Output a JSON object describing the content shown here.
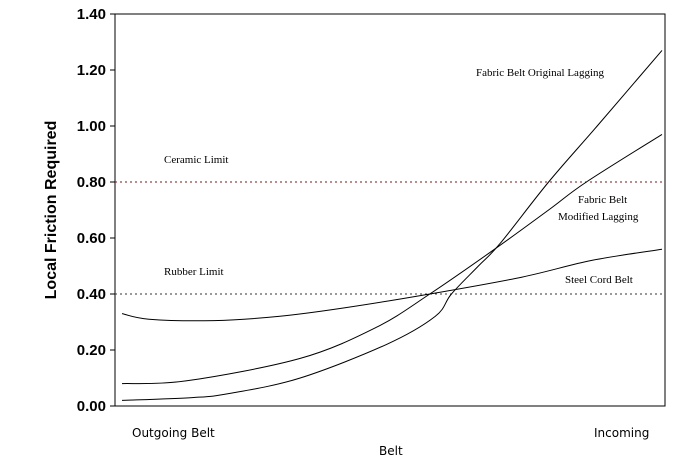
{
  "chart_data": {
    "type": "line",
    "title": "",
    "xlabel": "Belt",
    "ylabel": "Local Friction Required",
    "x_tick_labels": [
      "Outgoing Belt",
      "Incoming"
    ],
    "y_ticks": [
      "0.00",
      "0.20",
      "0.40",
      "0.60",
      "0.80",
      "1.00",
      "1.20",
      "1.40"
    ],
    "ylim": [
      0,
      1.4
    ],
    "xlim": [
      0,
      1
    ],
    "grid": false,
    "legend": "none (inline labels)",
    "series": [
      {
        "name": "Fabric Belt Original Lagging",
        "x": [
          0,
          0.13,
          0.2,
          0.33,
          0.49,
          0.58,
          0.61,
          0.66,
          0.7,
          0.79,
          0.88,
          1.0
        ],
        "y": [
          0.02,
          0.03,
          0.045,
          0.1,
          0.22,
          0.32,
          0.4,
          0.5,
          0.58,
          0.8,
          1.0,
          1.27
        ]
      },
      {
        "name": "Fabric Belt Modified Lagging",
        "x": [
          0,
          0.12,
          0.33,
          0.47,
          0.57,
          0.69,
          0.79,
          0.86,
          1.0
        ],
        "y": [
          0.08,
          0.09,
          0.17,
          0.28,
          0.4,
          0.56,
          0.7,
          0.8,
          0.97
        ]
      },
      {
        "name": "Steel Cord Belt",
        "x": [
          0,
          0.05,
          0.17,
          0.29,
          0.41,
          0.57,
          0.74,
          0.87,
          1.0
        ],
        "y": [
          0.33,
          0.31,
          0.305,
          0.32,
          0.35,
          0.4,
          0.46,
          0.52,
          0.56
        ]
      }
    ],
    "reference_lines": [
      {
        "name": "Ceramic Limit",
        "y": 0.8,
        "style": "dotted",
        "color": "#7a1a1a"
      },
      {
        "name": "Rubber Limit",
        "y": 0.4,
        "style": "dotted",
        "color": "#333333"
      }
    ],
    "annotations": {
      "original": "Fabric Belt Original Lagging",
      "modified_1": "Fabric Belt",
      "modified_2": "Modified Lagging",
      "steel": "Steel Cord Belt",
      "ceramic": "Ceramic Limit",
      "rubber": "Rubber Limit"
    }
  }
}
